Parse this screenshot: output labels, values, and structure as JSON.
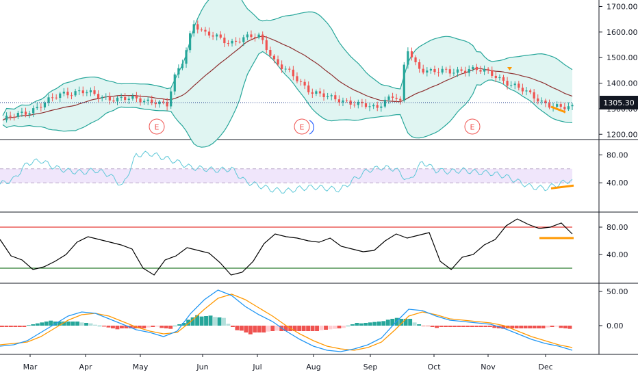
{
  "price_axis": {
    "ticks": [
      "1700.00",
      "1600.00",
      "1500.00",
      "1400.00",
      "1300.00",
      "1200.00"
    ],
    "tick_values": [
      1700,
      1600,
      1500,
      1400,
      1300,
      1200
    ],
    "last_price": "1305.30",
    "last_price_color": "#131722"
  },
  "rsi_axis": {
    "ticks": [
      "80.00",
      "40.00"
    ],
    "tick_values": [
      80,
      40
    ]
  },
  "stoch_axis": {
    "ticks": [
      "80.00",
      "40.00"
    ],
    "tick_values": [
      80,
      40
    ]
  },
  "macd_axis": {
    "ticks": [
      "50.00",
      "0.00"
    ],
    "tick_values": [
      50,
      0
    ]
  },
  "time_axis": [
    "Mar",
    "Apr",
    "May",
    "Jun",
    "Jul",
    "Aug",
    "Sep",
    "Oct",
    "Nov",
    "Dec"
  ],
  "earnings_markers": [
    "E",
    "E",
    "E"
  ],
  "colors": {
    "up": "#26a69a",
    "down": "#ef5350",
    "bb": "#26a69a",
    "bb_fill": "#e0f5f2",
    "basis": "#8d2f2f",
    "rsi": "#5ec8d8",
    "rsi_band": "#f0e6fb",
    "stoch": "#000000",
    "upper_level": "#e53935",
    "lower_level": "#2e7d32",
    "macd": "#2196f3",
    "signal": "#ff9800",
    "highlight": "#ff9800"
  },
  "chart_data": [
    {
      "type": "candlestick",
      "title": "",
      "ylim": [
        1190,
        1720
      ],
      "x_range": [
        "Feb",
        "Dec"
      ],
      "months": [
        "Mar",
        "Apr",
        "May",
        "Jun",
        "Jul",
        "Aug",
        "Sep",
        "Oct",
        "Nov",
        "Dec"
      ],
      "close_path": [
        [
          0,
          1255
        ],
        [
          12,
          1285
        ],
        [
          22,
          1320
        ],
        [
          32,
          1360
        ],
        [
          42,
          1370
        ],
        [
          52,
          1345
        ],
        [
          62,
          1340
        ],
        [
          72,
          1335
        ],
        [
          82,
          1330
        ],
        [
          88,
          1310
        ],
        [
          92,
          1420
        ],
        [
          97,
          1500
        ],
        [
          102,
          1640
        ],
        [
          108,
          1590
        ],
        [
          115,
          1580
        ],
        [
          122,
          1560
        ],
        [
          130,
          1575
        ],
        [
          137,
          1585
        ],
        [
          140,
          1560
        ],
        [
          146,
          1480
        ],
        [
          155,
          1430
        ],
        [
          165,
          1370
        ],
        [
          175,
          1340
        ],
        [
          185,
          1330
        ],
        [
          194,
          1310
        ],
        [
          200,
          1300
        ],
        [
          205,
          1340
        ],
        [
          210,
          1355
        ],
        [
          213,
          1320
        ],
        [
          216,
          1540
        ],
        [
          222,
          1460
        ],
        [
          230,
          1450
        ],
        [
          240,
          1440
        ],
        [
          250,
          1460
        ],
        [
          258,
          1445
        ],
        [
          266,
          1420
        ],
        [
          274,
          1390
        ],
        [
          282,
          1355
        ],
        [
          290,
          1325
        ],
        [
          295,
          1310
        ],
        [
          300,
          1300
        ],
        [
          305,
          1305
        ]
      ],
      "last_price": 1305.3,
      "indicators": [
        "Bollinger Bands",
        "Moving Average"
      ],
      "grid": false
    },
    {
      "type": "line",
      "title": "",
      "ylim": [
        0,
        100
      ],
      "band": [
        40,
        60
      ],
      "series": [
        {
          "values": [
            38,
            45,
            68,
            72,
            62,
            57,
            55,
            58,
            52,
            35,
            80,
            82,
            76,
            70,
            62,
            60,
            58,
            60,
            42,
            36,
            30,
            28,
            32,
            34,
            32,
            30,
            45,
            58,
            62,
            60,
            42,
            70,
            58,
            56,
            58,
            55,
            54,
            50,
            42,
            34,
            32,
            38,
            45
          ]
        }
      ]
    },
    {
      "type": "line",
      "title": "",
      "ylim": [
        0,
        100
      ],
      "levels": [
        80,
        20
      ],
      "series": [
        {
          "values": [
            62,
            38,
            32,
            18,
            22,
            30,
            40,
            58,
            66,
            62,
            58,
            54,
            48,
            20,
            10,
            32,
            38,
            50,
            46,
            42,
            28,
            10,
            14,
            30,
            56,
            70,
            66,
            64,
            60,
            58,
            64,
            52,
            48,
            44,
            46,
            60,
            70,
            64,
            68,
            72,
            30,
            18,
            36,
            40,
            54,
            62,
            82,
            92,
            84,
            78,
            80,
            86,
            70
          ]
        }
      ]
    },
    {
      "type": "bar",
      "title": "",
      "ylim": [
        -40,
        60
      ],
      "series": [
        {
          "values": [
            -30,
            -28,
            -22,
            -10,
            2,
            14,
            20,
            18,
            10,
            2,
            -6,
            -10,
            -16,
            -8,
            18,
            38,
            52,
            44,
            28,
            16,
            6,
            -8,
            -20,
            -30,
            -36,
            -38,
            -34,
            -28,
            -18,
            4,
            24,
            22,
            14,
            8,
            6,
            4,
            2,
            -4,
            -12,
            -20,
            -26,
            -30,
            -36
          ]
        },
        {
          "values": [
            -28,
            -26,
            -24,
            -16,
            -4,
            8,
            16,
            18,
            14,
            6,
            -2,
            -8,
            -12,
            -10,
            6,
            24,
            40,
            46,
            38,
            26,
            14,
            0,
            -12,
            -22,
            -30,
            -34,
            -36,
            -32,
            -24,
            -6,
            14,
            20,
            16,
            10,
            8,
            6,
            4,
            0,
            -8,
            -16,
            -22,
            -28,
            -32
          ]
        }
      ],
      "histogram": [
        -2,
        -2,
        2,
        6,
        6,
        6,
        4,
        0,
        -4,
        -4,
        -4,
        -2,
        -4,
        2,
        12,
        14,
        12,
        -2,
        -10,
        -10,
        -8,
        -8,
        -8,
        -8,
        -6,
        -4,
        2,
        4,
        6,
        10,
        10,
        2,
        -2,
        -2,
        -2,
        -2,
        -2,
        -4,
        -4,
        -4,
        -4,
        -2,
        -4
      ]
    }
  ]
}
